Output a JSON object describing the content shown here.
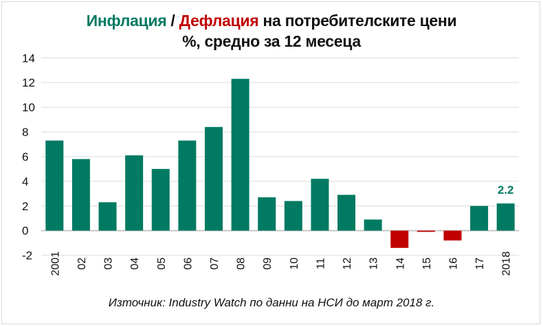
{
  "title": {
    "part1": "Инфлация",
    "sep": " / ",
    "part2": "Дефлация",
    "part3": " на потребителските цени",
    "line2": "%, средно за 12 месеца"
  },
  "source": "Източник: Industry Watch по данни на НСИ до март 2018 г.",
  "colors": {
    "positive": "#007A62",
    "negative": "#C00000",
    "grid": "#e6e6e6"
  },
  "chart_data": {
    "type": "bar",
    "title": "Инфлация / Дефлация на потребителските цени, %, средно за 12 месеца",
    "categories": [
      "2001",
      "02",
      "03",
      "04",
      "05",
      "06",
      "07",
      "08",
      "09",
      "10",
      "11",
      "12",
      "13",
      "14",
      "15",
      "16",
      "17",
      "2018"
    ],
    "values": [
      7.3,
      5.8,
      2.3,
      6.1,
      5.0,
      7.3,
      8.4,
      12.3,
      2.7,
      2.4,
      4.2,
      2.9,
      0.9,
      -1.4,
      -0.1,
      -0.8,
      2.0,
      2.2
    ],
    "yticks": [
      "-2",
      "0",
      "2",
      "4",
      "6",
      "8",
      "10",
      "12",
      "14"
    ],
    "ylim": [
      -2,
      14
    ],
    "grid": true,
    "data_labels": [
      {
        "index": 17,
        "text": "2.2"
      }
    ],
    "xlabel": "",
    "ylabel": ""
  }
}
